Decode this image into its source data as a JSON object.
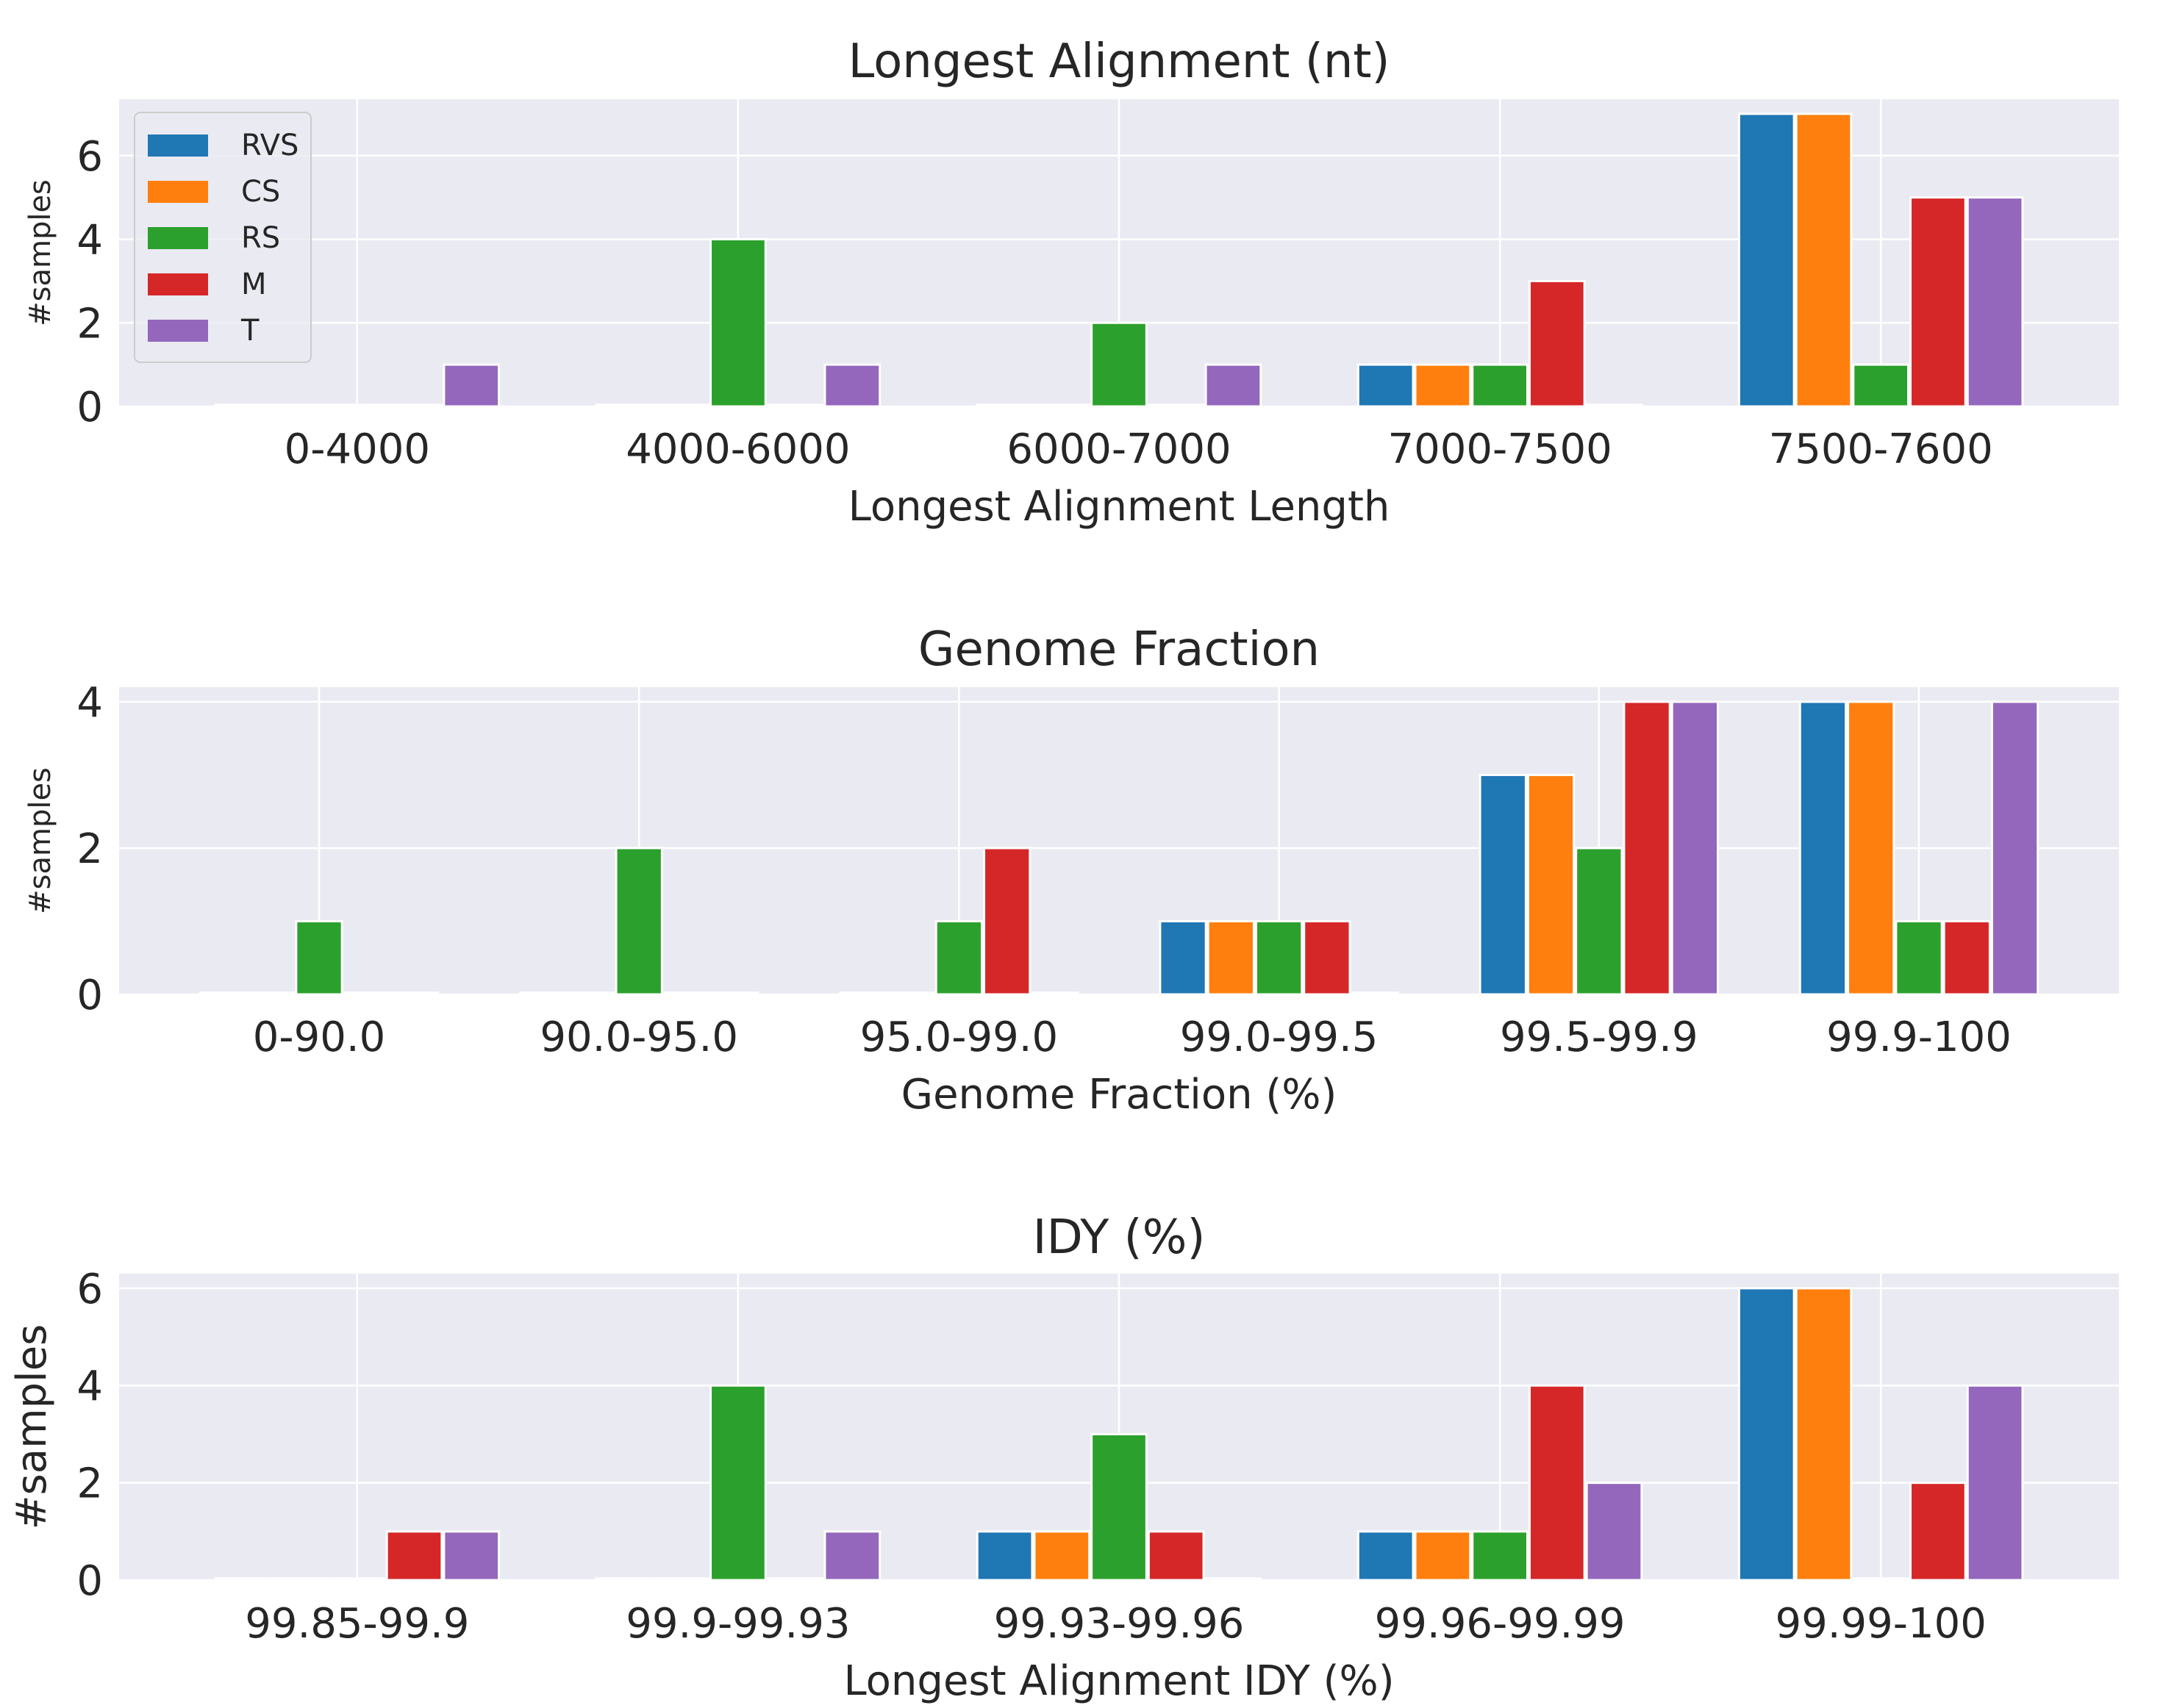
{
  "series_names": [
    "RVS",
    "CS",
    "RS",
    "M",
    "T"
  ],
  "colors": [
    "#1f77b4",
    "#ff7f0e",
    "#2ca02c",
    "#d62728",
    "#9467bd"
  ],
  "chart_data": [
    {
      "type": "bar",
      "title": "Longest Alignment (nt)",
      "xlabel": "Longest Alignment Length",
      "ylabel": "#samples",
      "ylim": [
        0,
        7.35
      ],
      "yticks": [
        0,
        2,
        4,
        6
      ],
      "grid": true,
      "legend": "top-left",
      "categories": [
        "0-4000",
        "4000-6000",
        "6000-7000",
        "7000-7500",
        "7500-7600"
      ],
      "series": [
        {
          "name": "RVS",
          "values": [
            0,
            0,
            0,
            1,
            7
          ]
        },
        {
          "name": "CS",
          "values": [
            0,
            0,
            0,
            1,
            7
          ]
        },
        {
          "name": "RS",
          "values": [
            0,
            4,
            2,
            1,
            1
          ]
        },
        {
          "name": "M",
          "values": [
            0,
            0,
            0,
            3,
            5
          ]
        },
        {
          "name": "T",
          "values": [
            1,
            1,
            1,
            0,
            5
          ]
        }
      ]
    },
    {
      "type": "bar",
      "title": "Genome Fraction",
      "xlabel": "Genome Fraction (%)",
      "ylabel": "#samples",
      "ylim": [
        0,
        4.2
      ],
      "yticks": [
        0,
        2,
        4
      ],
      "grid": true,
      "categories": [
        "0-90.0",
        "90.0-95.0",
        "95.0-99.0",
        "99.0-99.5",
        "99.5-99.9",
        "99.9-100"
      ],
      "series": [
        {
          "name": "RVS",
          "values": [
            0,
            0,
            0,
            1,
            3,
            4
          ]
        },
        {
          "name": "CS",
          "values": [
            0,
            0,
            0,
            1,
            3,
            4
          ]
        },
        {
          "name": "RS",
          "values": [
            1,
            2,
            1,
            1,
            2,
            1
          ]
        },
        {
          "name": "M",
          "values": [
            0,
            0,
            2,
            1,
            4,
            1
          ]
        },
        {
          "name": "T",
          "values": [
            0,
            0,
            0,
            0,
            4,
            4
          ]
        }
      ]
    },
    {
      "type": "bar",
      "title": "IDY (%)",
      "xlabel": "Longest Alignment IDY (%)",
      "ylabel": "#samples",
      "ylim": [
        0,
        6.3
      ],
      "yticks": [
        0,
        2,
        4,
        6
      ],
      "grid": true,
      "categories": [
        "99.85-99.9",
        "99.9-99.93",
        "99.93-99.96",
        "99.96-99.99",
        "99.99-100"
      ],
      "series": [
        {
          "name": "RVS",
          "values": [
            0,
            0,
            1,
            1,
            6
          ]
        },
        {
          "name": "CS",
          "values": [
            0,
            0,
            1,
            1,
            6
          ]
        },
        {
          "name": "RS",
          "values": [
            0,
            4,
            3,
            1,
            0
          ]
        },
        {
          "name": "M",
          "values": [
            1,
            0,
            1,
            4,
            2
          ]
        },
        {
          "name": "T",
          "values": [
            1,
            1,
            0,
            2,
            4
          ]
        }
      ]
    }
  ]
}
